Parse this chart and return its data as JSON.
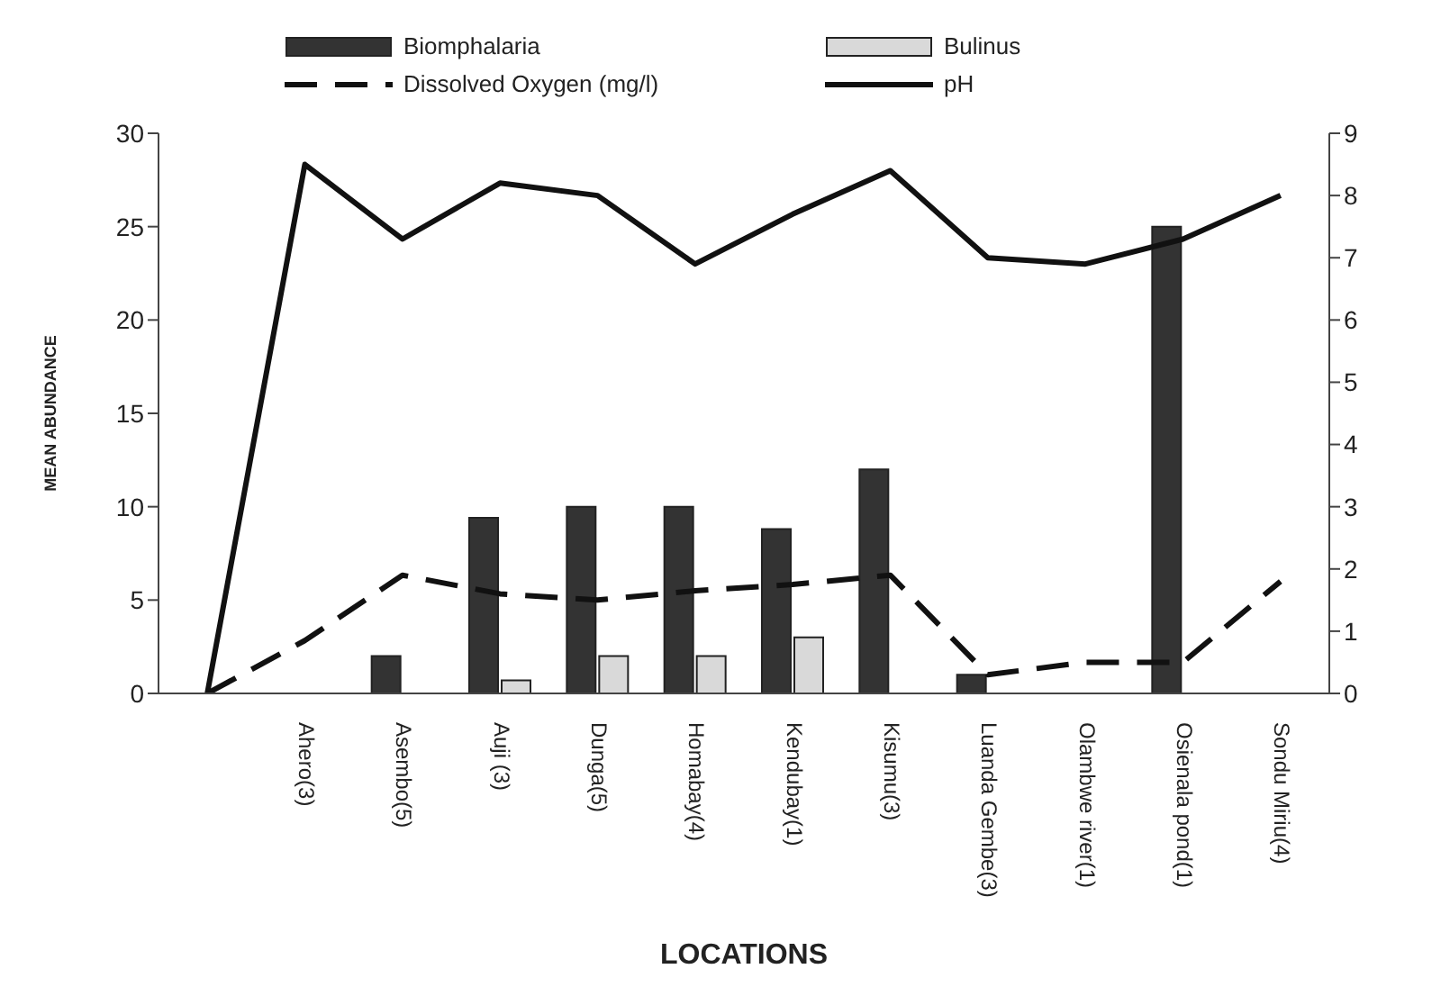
{
  "chart_data": {
    "type": "bar",
    "xlabel": "LOCATIONS",
    "ylabel": "MEAN ABUNDANCE",
    "categories": [
      null,
      "Ahero(3)",
      "Asembo(5)",
      "Auji (3)",
      "Dunga(5)",
      "Homabay(4)",
      "Kendubay(1)",
      "Kisumu(3)",
      "Luanda Gembe(3)",
      "Olambwe river(1)",
      "Osienala pond(1)",
      "Sondu Miriu(4)"
    ],
    "series": [
      {
        "name": "Biomphalaria",
        "color": "#333333",
        "values": [
          null,
          0,
          2,
          9.4,
          10,
          10,
          8.8,
          12,
          1,
          0,
          25,
          0
        ]
      },
      {
        "name": "Bulinus",
        "color": "#d9d9d9",
        "values": [
          null,
          0,
          0,
          0.7,
          2,
          2,
          3,
          0,
          0,
          0,
          0,
          0
        ]
      },
      {
        "name": "Dissolved Oxygen (mg/l)",
        "type": "line",
        "axis": "y2",
        "color": "#111111",
        "line_style": "dashed",
        "values": [
          0,
          0.85,
          1.9,
          1.6,
          1.5,
          1.65,
          1.75,
          1.9,
          0.3,
          0.5,
          0.5,
          1.8
        ]
      },
      {
        "name": "pH",
        "type": "line",
        "axis": "y2",
        "color": "#111111",
        "line_style": "solid",
        "values": [
          0,
          8.5,
          7.3,
          8.2,
          8.0,
          6.9,
          7.7,
          8.4,
          7.0,
          6.9,
          7.3,
          8.0
        ]
      }
    ],
    "ylim": [
      0,
      30
    ],
    "yticks": [
      0,
      5,
      10,
      15,
      20,
      25,
      30
    ],
    "y2lim": [
      0,
      9
    ],
    "y2ticks": [
      0,
      1,
      2,
      3,
      4,
      5,
      6,
      7,
      8,
      9
    ],
    "grid": false,
    "legend": "top",
    "marker": "none"
  }
}
